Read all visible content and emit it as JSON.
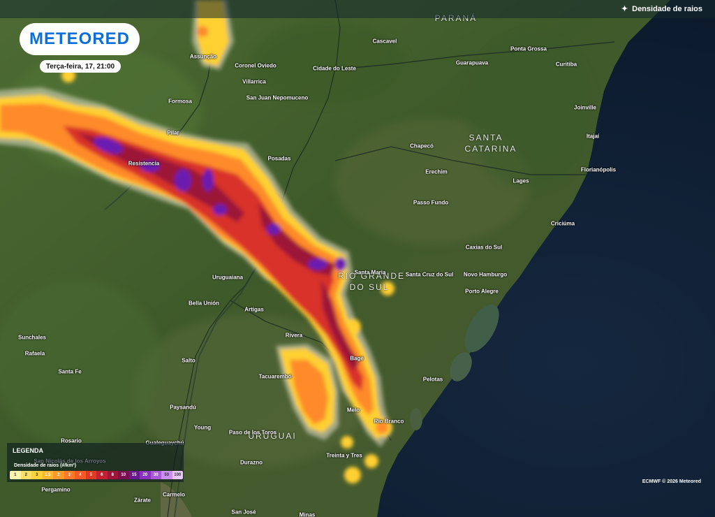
{
  "header": {
    "layer_label": "Densidade de raios",
    "layer_icon": "sparkle-icon"
  },
  "brand": {
    "logo": "METEORED",
    "date": "Terça-feira, 17, 21:00",
    "accent": "#0a6fd8"
  },
  "regions": [
    {
      "name": "PARANÁ"
    },
    {
      "name": "SANTA"
    },
    {
      "name": "CATARINA"
    },
    {
      "name": "RIO GRANDE"
    },
    {
      "name": "DO SUL"
    },
    {
      "name": "URUGUAI"
    }
  ],
  "places": [
    "Assunção",
    "Coronel Oviedo",
    "Cidade do Leste",
    "Cascavel",
    "Ponta Grossa",
    "Curitiba",
    "Guarapuava",
    "Villarrica",
    "San Juan Nepomuceno",
    "Formosa",
    "Joinville",
    "Pilar",
    "Itajaí",
    "Chapecó",
    "Resistencia",
    "Posadas",
    "Erechim",
    "Florianópolis",
    "Lages",
    "Passo Fundo",
    "Criciúma",
    "Caxias do Sul",
    "Santa Maria",
    "Santa Cruz do Sul",
    "Novo Hamburgo",
    "Uruguaiana",
    "Porto Alegre",
    "Bella Unión",
    "Artigas",
    "Sunchales",
    "Rivera",
    "Rafaela",
    "Bagé",
    "Santa Fe",
    "Tacuarembó",
    "Salto",
    "Pelotas",
    "Paysandú",
    "Melo",
    "Río Branco",
    "Young",
    "Paso de los Toros",
    "Rosario",
    "Gualeguaychú",
    "San Nicolás de los Arroyos",
    "Treinta y Tres",
    "Durazno",
    "Pergamino",
    "Zárate",
    "Carmelo",
    "San José",
    "Minas"
  ],
  "legend": {
    "title": "LEGENDA",
    "subtitle": "Densidade de raios (#/km²)",
    "scale": [
      {
        "label": "1",
        "color": "#fff3b0"
      },
      {
        "label": "2",
        "color": "#ffe066"
      },
      {
        "label": "3",
        "color": "#ffd23a"
      },
      {
        "label": "1.5",
        "color": "#ffb52e"
      },
      {
        "label": "2",
        "color": "#ff9a2a"
      },
      {
        "label": "3",
        "color": "#ff7a28"
      },
      {
        "label": "4",
        "color": "#f55a26"
      },
      {
        "label": "5",
        "color": "#e03a24"
      },
      {
        "label": "6",
        "color": "#c42030"
      },
      {
        "label": "8",
        "color": "#a01438"
      },
      {
        "label": "10",
        "color": "#7a1050"
      },
      {
        "label": "15",
        "color": "#6a1890"
      },
      {
        "label": "20",
        "color": "#8a30c0"
      },
      {
        "label": "30",
        "color": "#a858d8"
      },
      {
        "label": "50",
        "color": "#c890ec"
      },
      {
        "label": "100",
        "color": "#e8c8f8"
      }
    ]
  },
  "credit": "ECMWF © 2026 Meteored"
}
